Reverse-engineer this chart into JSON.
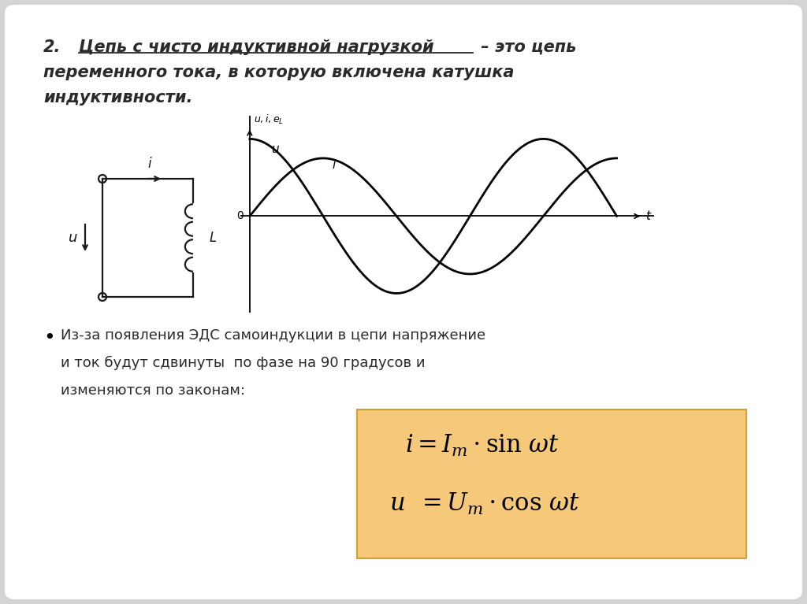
{
  "bg_color": "#d4d4d4",
  "slide_bg": "#ffffff",
  "title_line1_num": "2.",
  "title_line1_bold": "Цепь с чисто индуктивной нагрузкой",
  "title_line1_rest": " – это цепь",
  "title_line2": "переменного тока, в которую включена катушка",
  "title_line3": "индуктивности.",
  "bullet_line1": "Из-за появления ЭДС самоиндукции в цепи напряжение",
  "bullet_line2": "и ток будут сдвинуты  по фазе на 90 градусов и",
  "bullet_line3": "изменяются по законам:",
  "formula_bg": "#f5c87a",
  "formula_border": "#d4a030",
  "text_color": "#2a2a2a",
  "circuit_color": "#1a1a1a",
  "graph_lw": 2.0,
  "u_amplitude": 1.0,
  "i_amplitude": 0.75,
  "t_max_cycles": 2.0
}
